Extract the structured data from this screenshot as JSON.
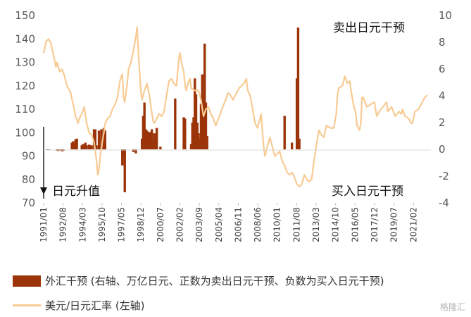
{
  "chart_data": {
    "type": "bar+line",
    "x_ticks": [
      "1991/01",
      "1992/08",
      "1994/03",
      "1995/10",
      "1997/05",
      "1998/12",
      "2000/07",
      "2002/02",
      "2003/09",
      "2005/04",
      "2006/11",
      "2008/06",
      "2010/01",
      "2011/08",
      "2013/03",
      "2014/10",
      "2016/05",
      "2017/12",
      "2019/07",
      "2021/02"
    ],
    "x_range": [
      1991.0,
      2022.5
    ],
    "left_axis": {
      "ticks": [
        "70",
        "80",
        "90",
        "100",
        "110",
        "120",
        "130",
        "140",
        "150"
      ],
      "ylim": [
        70,
        150
      ]
    },
    "right_axis": {
      "ticks": [
        "-4",
        "-2",
        "0",
        "2",
        "4",
        "6",
        "8",
        "10"
      ],
      "ylim": [
        -4,
        10
      ]
    },
    "annotations": {
      "sell": "卖出日元干预",
      "buy": "买入日元干预",
      "appreciate": "日元升值"
    },
    "legend": {
      "bar": "外汇干预 (右轴、万亿日元、正数为卖出日元干预、负数为买入日元干预)",
      "line": "美元/日元汇率 (左轴)"
    },
    "series": [
      {
        "name": "外汇干预 (右轴、万亿日元、正数为卖出日元干预、负数为买入日元干预)",
        "type": "bar",
        "axis": "right",
        "color": "#9B3408",
        "points": [
          [
            1991.3,
            -0.05
          ],
          [
            1991.4,
            -0.06
          ],
          [
            1992.1,
            -0.1
          ],
          [
            1992.2,
            -0.12
          ],
          [
            1992.3,
            -0.08
          ],
          [
            1992.5,
            -0.15
          ],
          [
            1992.6,
            -0.1
          ],
          [
            1993.3,
            0.5
          ],
          [
            1993.4,
            0.6
          ],
          [
            1993.5,
            0.45
          ],
          [
            1993.6,
            0.75
          ],
          [
            1993.7,
            0.8
          ],
          [
            1994.1,
            0.3
          ],
          [
            1994.2,
            0.4
          ],
          [
            1994.3,
            0.35
          ],
          [
            1994.4,
            0.5
          ],
          [
            1994.5,
            0.3
          ],
          [
            1994.7,
            0.35
          ],
          [
            1994.8,
            0.3
          ],
          [
            1994.9,
            0.3
          ],
          [
            1995.1,
            1.5
          ],
          [
            1995.2,
            1.5
          ],
          [
            1995.3,
            0.3
          ],
          [
            1995.5,
            1.4
          ],
          [
            1995.6,
            0.3
          ],
          [
            1995.7,
            1.5
          ],
          [
            1995.9,
            1.6
          ],
          [
            1996.0,
            1.4
          ],
          [
            1997.4,
            -1.2
          ],
          [
            1997.5,
            -0.6
          ],
          [
            1997.6,
            -3.2
          ],
          [
            1998.3,
            -0.2
          ],
          [
            1998.5,
            -0.3
          ],
          [
            1999.0,
            0.8
          ],
          [
            1999.1,
            2.5
          ],
          [
            1999.2,
            3.5
          ],
          [
            1999.3,
            1.5
          ],
          [
            1999.4,
            1.4
          ],
          [
            1999.5,
            1.3
          ],
          [
            1999.6,
            1.2
          ],
          [
            1999.7,
            1.3
          ],
          [
            1999.8,
            1.5
          ],
          [
            1999.9,
            0.6
          ],
          [
            2000.0,
            1.2
          ],
          [
            2000.1,
            1.1
          ],
          [
            2000.2,
            1.6
          ],
          [
            2000.5,
            0.2
          ],
          [
            2001.7,
            3.8
          ],
          [
            2002.4,
            2.4
          ],
          [
            2002.5,
            2.3
          ],
          [
            2003.0,
            0.4
          ],
          [
            2003.1,
            2.0
          ],
          [
            2003.2,
            2.4
          ],
          [
            2003.3,
            5.3
          ],
          [
            2003.4,
            4.1
          ],
          [
            2003.5,
            2.0
          ],
          [
            2003.6,
            1.2
          ],
          [
            2003.7,
            0.8
          ],
          [
            2003.8,
            3.4
          ],
          [
            2003.9,
            5.6
          ],
          [
            2004.0,
            3.7
          ],
          [
            2004.1,
            7.9
          ],
          [
            2004.2,
            3.5
          ],
          [
            2004.3,
            1.0
          ],
          [
            2010.6,
            2.5
          ],
          [
            2011.2,
            0.5
          ],
          [
            2011.6,
            5.3
          ],
          [
            2011.7,
            9.1
          ],
          [
            2011.8,
            0.8
          ]
        ]
      },
      {
        "name": "美元/日元汇率 (左轴)",
        "type": "line",
        "axis": "left",
        "color": "#F8CB95",
        "points": [
          [
            1991.0,
            134
          ],
          [
            1991.1,
            136
          ],
          [
            1991.2,
            139
          ],
          [
            1991.4,
            140
          ],
          [
            1991.6,
            138
          ],
          [
            1991.8,
            133
          ],
          [
            1992.0,
            128
          ],
          [
            1992.1,
            130
          ],
          [
            1992.3,
            126
          ],
          [
            1992.5,
            127
          ],
          [
            1992.7,
            124
          ],
          [
            1992.9,
            120
          ],
          [
            1993.0,
            119
          ],
          [
            1993.2,
            117
          ],
          [
            1993.4,
            112
          ],
          [
            1993.6,
            107
          ],
          [
            1993.8,
            104
          ],
          [
            1993.9,
            106
          ],
          [
            1994.1,
            108
          ],
          [
            1994.3,
            111
          ],
          [
            1994.5,
            104
          ],
          [
            1994.7,
            100
          ],
          [
            1994.9,
            99
          ],
          [
            1995.1,
            96
          ],
          [
            1995.3,
            88
          ],
          [
            1995.4,
            82
          ],
          [
            1995.5,
            84
          ],
          [
            1995.6,
            90
          ],
          [
            1995.8,
            97
          ],
          [
            1995.9,
            100
          ],
          [
            1996.0,
            104
          ],
          [
            1996.2,
            106
          ],
          [
            1996.4,
            107
          ],
          [
            1996.6,
            110
          ],
          [
            1996.8,
            112
          ],
          [
            1997.0,
            115
          ],
          [
            1997.2,
            122
          ],
          [
            1997.4,
            125
          ],
          [
            1997.5,
            115
          ],
          [
            1997.6,
            113
          ],
          [
            1997.8,
            121
          ],
          [
            1997.9,
            127
          ],
          [
            1998.1,
            130
          ],
          [
            1998.3,
            135
          ],
          [
            1998.5,
            141
          ],
          [
            1998.6,
            145
          ],
          [
            1998.7,
            135
          ],
          [
            1998.9,
            118
          ],
          [
            1999.0,
            114
          ],
          [
            1999.2,
            118
          ],
          [
            1999.4,
            121
          ],
          [
            1999.6,
            116
          ],
          [
            1999.7,
            112
          ],
          [
            1999.9,
            105
          ],
          [
            2000.0,
            104
          ],
          [
            2000.2,
            106
          ],
          [
            2000.4,
            108
          ],
          [
            2000.6,
            107
          ],
          [
            2000.8,
            109
          ],
          [
            2001.0,
            116
          ],
          [
            2001.2,
            122
          ],
          [
            2001.4,
            123
          ],
          [
            2001.6,
            121
          ],
          [
            2001.8,
            120
          ],
          [
            2002.0,
            132
          ],
          [
            2002.1,
            134
          ],
          [
            2002.2,
            130
          ],
          [
            2002.4,
            126
          ],
          [
            2002.5,
            120
          ],
          [
            2002.6,
            118
          ],
          [
            2002.8,
            122
          ],
          [
            2002.9,
            123
          ],
          [
            2003.0,
            119
          ],
          [
            2003.3,
            118
          ],
          [
            2003.6,
            118
          ],
          [
            2003.8,
            114
          ],
          [
            2004.0,
            107
          ],
          [
            2004.2,
            110
          ],
          [
            2004.4,
            111
          ],
          [
            2004.6,
            108
          ],
          [
            2004.8,
            106
          ],
          [
            2005.0,
            103
          ],
          [
            2005.3,
            107
          ],
          [
            2005.5,
            110
          ],
          [
            2005.8,
            114
          ],
          [
            2006.0,
            117
          ],
          [
            2006.2,
            116
          ],
          [
            2006.4,
            114
          ],
          [
            2006.6,
            116
          ],
          [
            2006.9,
            119
          ],
          [
            2007.1,
            120
          ],
          [
            2007.3,
            121
          ],
          [
            2007.5,
            123
          ],
          [
            2007.6,
            118
          ],
          [
            2007.8,
            116
          ],
          [
            2008.0,
            110
          ],
          [
            2008.2,
            104
          ],
          [
            2008.4,
            102
          ],
          [
            2008.6,
            106
          ],
          [
            2008.7,
            108
          ],
          [
            2008.8,
            100
          ],
          [
            2008.9,
            94
          ],
          [
            2009.0,
            90
          ],
          [
            2009.2,
            94
          ],
          [
            2009.4,
            98
          ],
          [
            2009.6,
            94
          ],
          [
            2009.8,
            90
          ],
          [
            2010.0,
            91
          ],
          [
            2010.2,
            92
          ],
          [
            2010.4,
            88
          ],
          [
            2010.6,
            86
          ],
          [
            2010.8,
            83
          ],
          [
            2011.0,
            82
          ],
          [
            2011.2,
            83
          ],
          [
            2011.4,
            81
          ],
          [
            2011.6,
            78
          ],
          [
            2011.8,
            77
          ],
          [
            2012.0,
            78
          ],
          [
            2012.2,
            82
          ],
          [
            2012.4,
            80
          ],
          [
            2012.6,
            79
          ],
          [
            2012.8,
            80
          ],
          [
            2013.0,
            88
          ],
          [
            2013.2,
            95
          ],
          [
            2013.4,
            101
          ],
          [
            2013.6,
            99
          ],
          [
            2013.8,
            98
          ],
          [
            2014.0,
            103
          ],
          [
            2014.3,
            102
          ],
          [
            2014.6,
            102
          ],
          [
            2014.8,
            108
          ],
          [
            2014.9,
            116
          ],
          [
            2015.0,
            119
          ],
          [
            2015.3,
            120
          ],
          [
            2015.5,
            124
          ],
          [
            2015.7,
            121
          ],
          [
            2015.9,
            122
          ],
          [
            2016.0,
            118
          ],
          [
            2016.2,
            112
          ],
          [
            2016.4,
            108
          ],
          [
            2016.5,
            103
          ],
          [
            2016.7,
            101
          ],
          [
            2016.8,
            104
          ],
          [
            2016.9,
            115
          ],
          [
            2017.0,
            115
          ],
          [
            2017.3,
            111
          ],
          [
            2017.6,
            112
          ],
          [
            2017.9,
            113
          ],
          [
            2018.1,
            107
          ],
          [
            2018.3,
            109
          ],
          [
            2018.6,
            111
          ],
          [
            2018.9,
            113
          ],
          [
            2019.0,
            109
          ],
          [
            2019.3,
            111
          ],
          [
            2019.6,
            107
          ],
          [
            2019.9,
            109
          ],
          [
            2020.1,
            108
          ],
          [
            2020.2,
            110
          ],
          [
            2020.4,
            107
          ],
          [
            2020.7,
            106
          ],
          [
            2020.9,
            104
          ],
          [
            2021.0,
            104
          ],
          [
            2021.2,
            109
          ],
          [
            2021.5,
            110
          ],
          [
            2021.8,
            113
          ],
          [
            2022.0,
            115
          ],
          [
            2022.2,
            116
          ]
        ]
      }
    ]
  },
  "watermark": "格隆汇"
}
